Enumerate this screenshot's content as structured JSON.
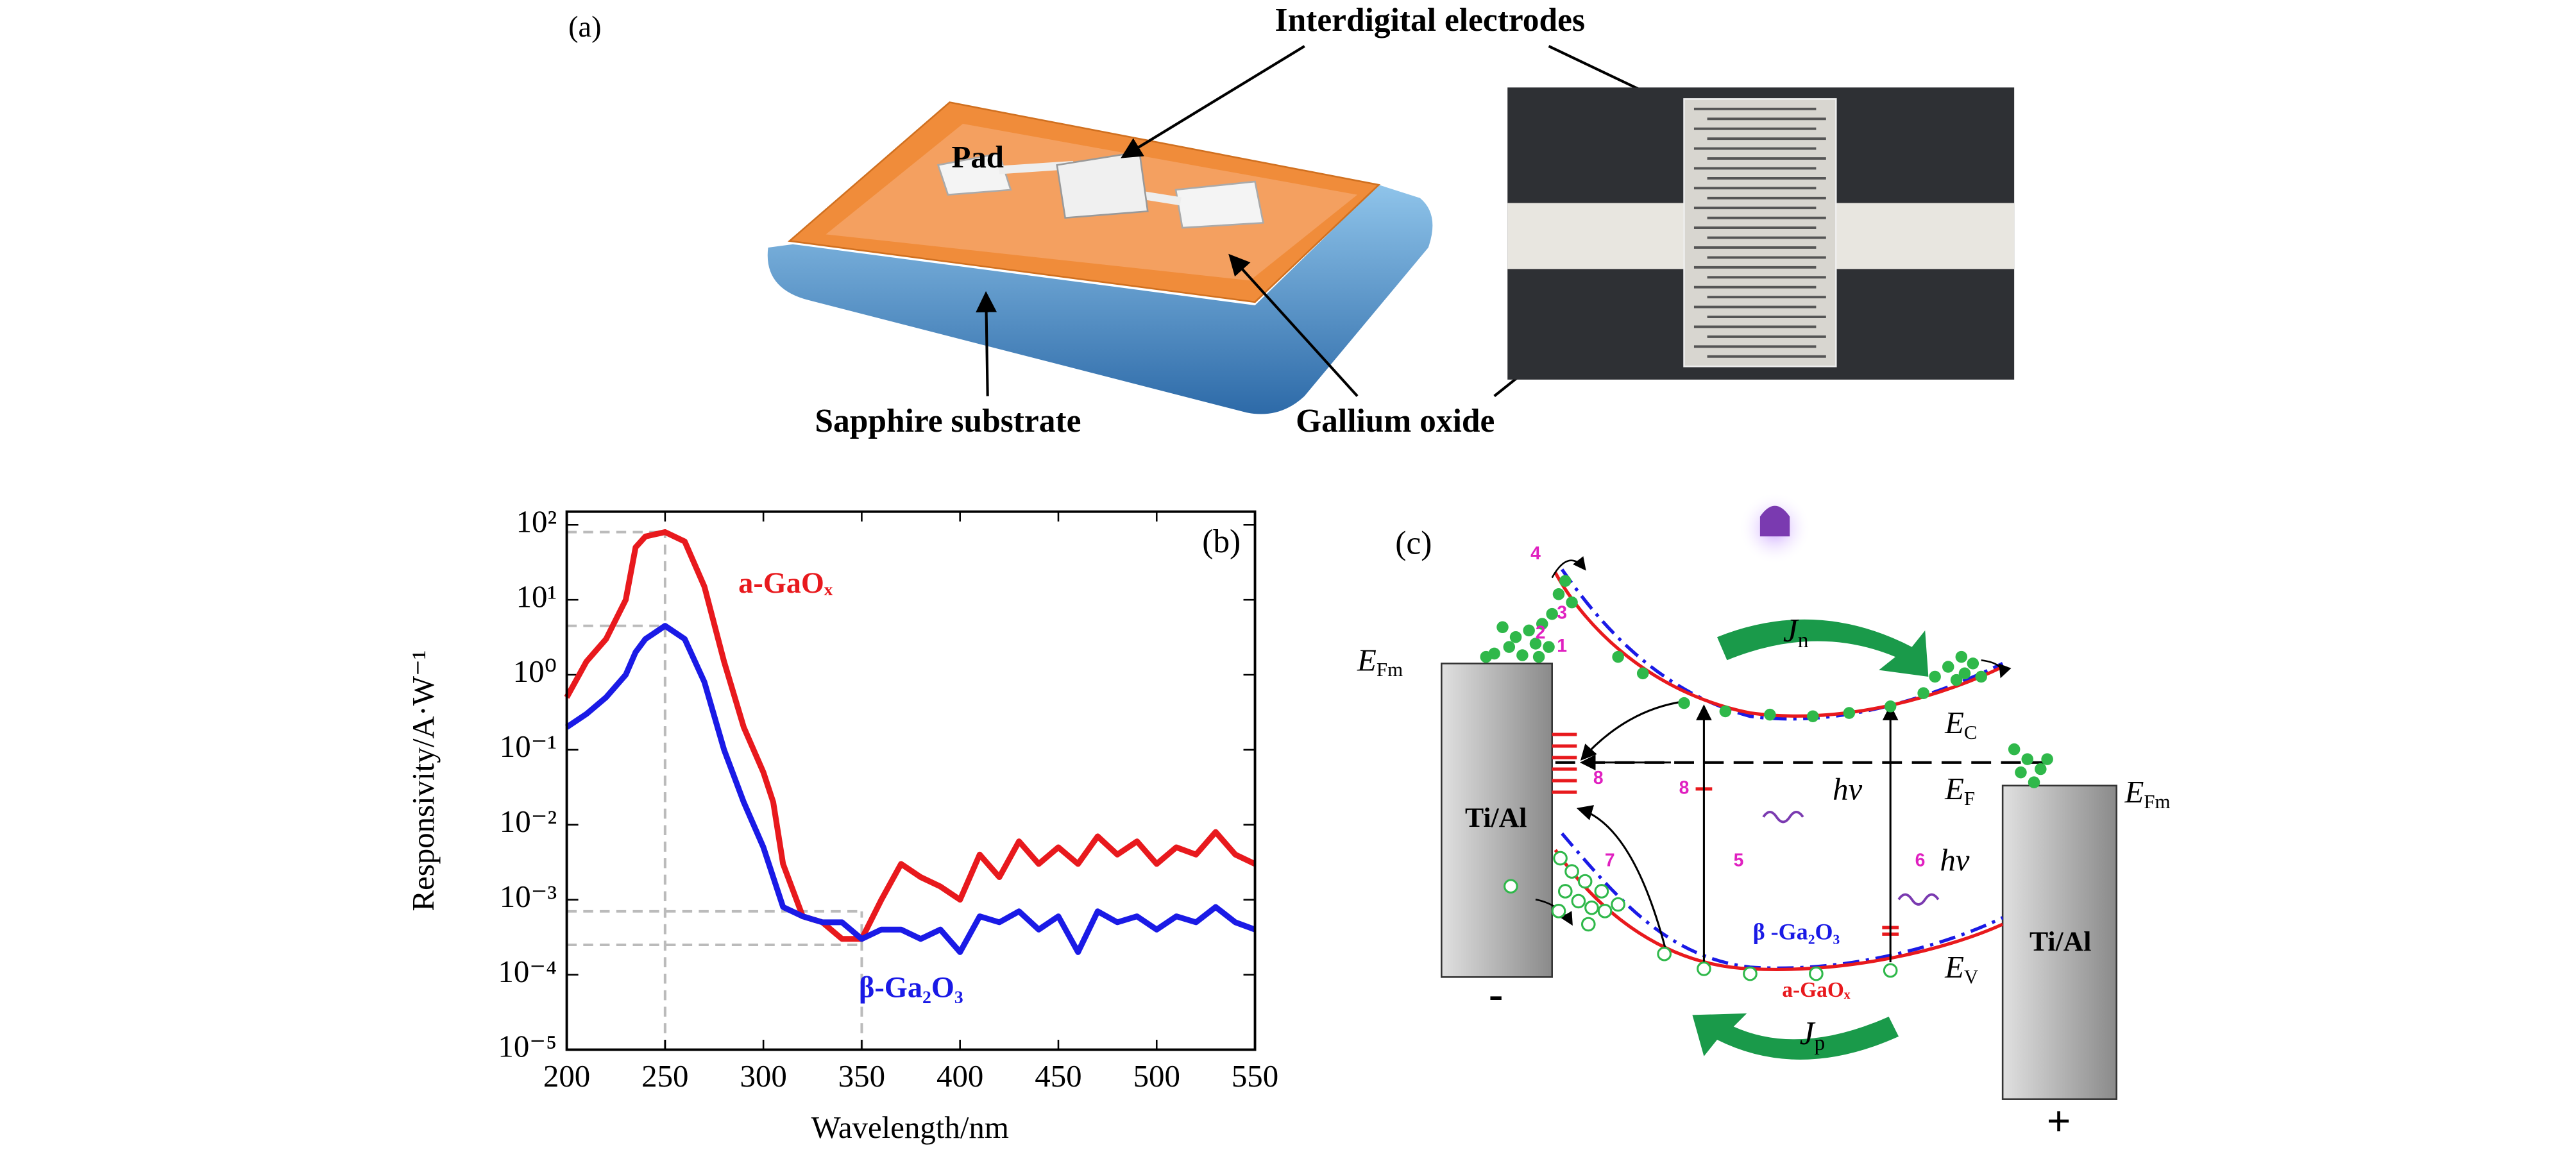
{
  "panel_a": {
    "label": "(a)",
    "electrodes": "Interdigital electrodes",
    "pad": "Pad",
    "substrate": "Sapphire substrate",
    "oxide": "Gallium oxide"
  },
  "chart_data": {
    "type": "line",
    "panel_label": "(b)",
    "xlabel": "Wavelength/nm",
    "ylabel": "Responsivity/A·W⁻¹",
    "x": [
      200,
      210,
      220,
      230,
      235,
      240,
      250,
      260,
      270,
      280,
      290,
      300,
      305,
      310,
      320,
      330,
      340,
      350,
      360,
      370,
      380,
      390,
      400,
      410,
      420,
      430,
      440,
      450,
      460,
      470,
      480,
      490,
      500,
      510,
      520,
      530,
      540,
      550
    ],
    "series": [
      {
        "name": "a-GaOₓ",
        "color": "#e8191d",
        "values": [
          0.5,
          1.5,
          3,
          10,
          50,
          70,
          80,
          60,
          15,
          1.5,
          0.2,
          0.05,
          0.02,
          0.003,
          0.0006,
          0.0005,
          0.0003,
          0.0003,
          0.001,
          0.003,
          0.002,
          0.0015,
          0.001,
          0.004,
          0.002,
          0.006,
          0.003,
          0.005,
          0.003,
          0.007,
          0.004,
          0.006,
          0.003,
          0.005,
          0.004,
          0.008,
          0.004,
          0.003
        ]
      },
      {
        "name": "β-Ga₂O₃",
        "color": "#1a1ae6",
        "values": [
          0.2,
          0.3,
          0.5,
          1,
          2,
          3,
          4.5,
          3,
          0.8,
          0.1,
          0.02,
          0.005,
          0.002,
          0.0008,
          0.0006,
          0.0005,
          0.0005,
          0.0003,
          0.0004,
          0.0004,
          0.0003,
          0.0004,
          0.0002,
          0.0006,
          0.0005,
          0.0007,
          0.0004,
          0.0006,
          0.0002,
          0.0007,
          0.0005,
          0.0006,
          0.0004,
          0.0006,
          0.0005,
          0.0008,
          0.0005,
          0.0004
        ]
      }
    ],
    "xlim": [
      200,
      550
    ],
    "ylim": [
      1e-05,
      150
    ],
    "log_y": true,
    "xticks": [
      200,
      250,
      300,
      350,
      400,
      450,
      500,
      550
    ],
    "yticks": [
      {
        "value": 100,
        "label": "10²"
      },
      {
        "value": 10,
        "label": "10¹"
      },
      {
        "value": 1,
        "label": "10⁰"
      },
      {
        "value": 0.1,
        "label": "10⁻¹"
      },
      {
        "value": 0.01,
        "label": "10⁻²"
      },
      {
        "value": 0.001,
        "label": "10⁻³"
      },
      {
        "value": 0.0001,
        "label": "10⁻⁴"
      },
      {
        "value": 1e-05,
        "label": "10⁻⁵"
      }
    ],
    "reference_lines": [
      {
        "x": 250,
        "y": 80
      },
      {
        "x": 250,
        "y": 4.5
      },
      {
        "x": 350,
        "y": 0.0007
      },
      {
        "x": 350,
        "y": 0.00025
      }
    ]
  },
  "panel_c": {
    "label": "(c)",
    "metal_left": "Ti/Al",
    "metal_right": "Ti/Al",
    "left_sign": "-",
    "right_sign": "+",
    "efm_left": {
      "main": "E",
      "sub": "Fm"
    },
    "efm_right": {
      "main": "E",
      "sub": "Fm"
    },
    "ec": {
      "main": "E",
      "sub": "C"
    },
    "ef": {
      "main": "E",
      "sub": "F"
    },
    "ev": {
      "main": "E",
      "sub": "V"
    },
    "jn": {
      "main": "J",
      "sub": "n"
    },
    "jp": {
      "main": "J",
      "sub": "p"
    },
    "photon_1": "hν",
    "photon_2": "hν",
    "beta_label": "β -Ga₂O₃",
    "amorphous_label": "a-GaOₓ",
    "processes": [
      "1",
      "2",
      "3",
      "4",
      "5",
      "6",
      "7",
      "8",
      "8"
    ]
  }
}
